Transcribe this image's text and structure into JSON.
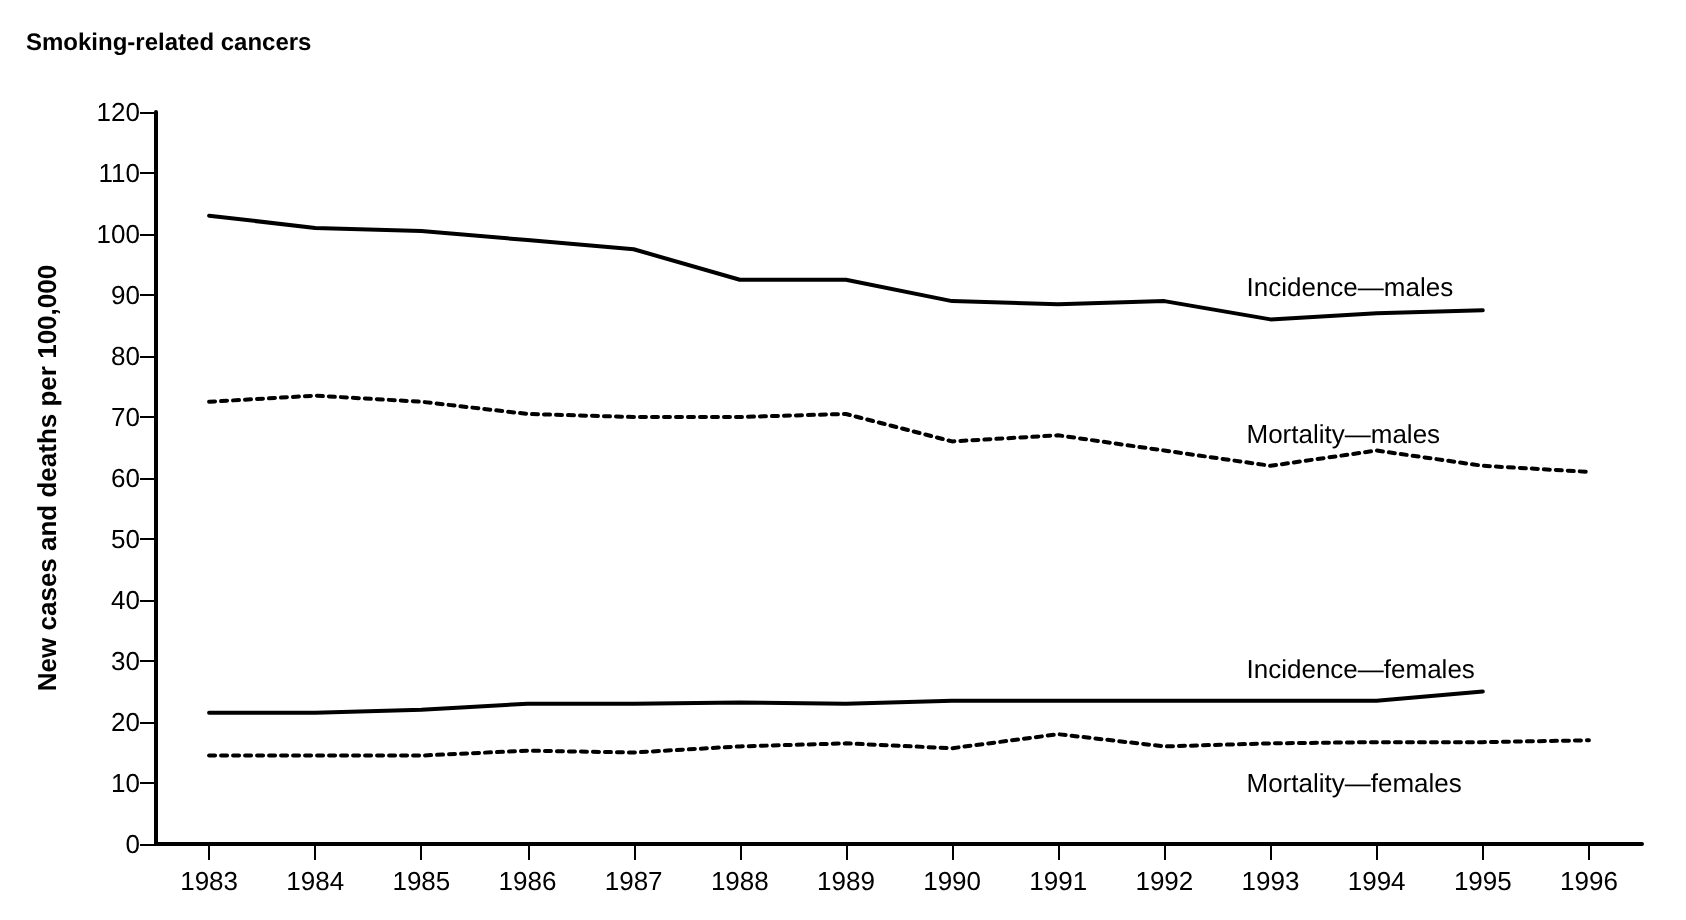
{
  "chart_data": {
    "type": "line",
    "title": "Smoking-related cancers",
    "ylabel": "New cases and deaths per 100,000",
    "categories": [
      "1983",
      "1984",
      "1985",
      "1986",
      "1987",
      "1988",
      "1989",
      "1990",
      "1991",
      "1992",
      "1993",
      "1994",
      "1995",
      "1996"
    ],
    "series": [
      {
        "name": "Incidence—males",
        "color": "#000000",
        "line_style": "solid",
        "values": [
          103,
          101,
          100.5,
          99,
          97.5,
          92.5,
          92.5,
          89,
          88.5,
          89,
          86,
          87,
          87.5,
          null
        ]
      },
      {
        "name": "Mortality—males",
        "color": "#000000",
        "line_style": "dotted",
        "values": [
          72.5,
          73.5,
          72.5,
          70.5,
          70,
          70,
          70.5,
          66,
          67,
          64.5,
          62,
          64.5,
          62,
          61
        ]
      },
      {
        "name": "Incidence—females",
        "color": "#000000",
        "line_style": "solid",
        "values": [
          21.5,
          21.5,
          22,
          23,
          23,
          23.2,
          23,
          23.5,
          23.5,
          23.5,
          23.5,
          23.5,
          25,
          null
        ]
      },
      {
        "name": "Mortality—females",
        "color": "#000000",
        "line_style": "dotted",
        "values": [
          14.5,
          14.5,
          14.5,
          15.3,
          15,
          16,
          16.5,
          15.7,
          18,
          16,
          16.5,
          16.7,
          16.7,
          17
        ]
      }
    ],
    "ylim": [
      0,
      120
    ],
    "yticks": [
      0,
      10,
      20,
      30,
      40,
      50,
      60,
      70,
      80,
      90,
      100,
      110,
      120
    ],
    "grid": false,
    "legend": false,
    "marker": "none"
  }
}
